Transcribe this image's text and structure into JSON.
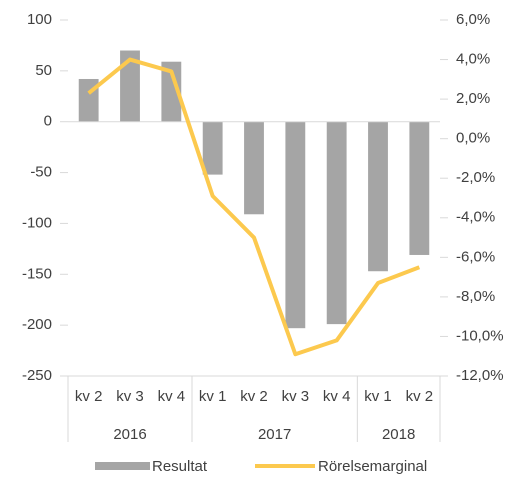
{
  "chart_data": {
    "type": "bar_line",
    "categories": [
      "kv 2",
      "kv 3",
      "kv 4",
      "kv 1",
      "kv 2",
      "kv 3",
      "kv 4",
      "kv 1",
      "kv 2"
    ],
    "groups": [
      {
        "label": "2016",
        "size": 3
      },
      {
        "label": "2017",
        "size": 4
      },
      {
        "label": "2018",
        "size": 2
      }
    ],
    "series": [
      {
        "name": "Resultat",
        "type": "bar",
        "color": "#a5a5a5",
        "values": [
          42,
          70,
          59,
          -52,
          -91,
          -203,
          -199,
          -147,
          -131
        ]
      },
      {
        "name": "Rörelsemarginal",
        "type": "line",
        "axis": "y2",
        "color": "#fcc94e",
        "values": [
          2.3,
          4.0,
          3.4,
          -2.9,
          -5.0,
          -10.9,
          -10.2,
          -7.3,
          -6.5
        ]
      }
    ],
    "ylim": [
      -250,
      100
    ],
    "yticks": [
      100,
      50,
      0,
      -50,
      -100,
      -150,
      -200,
      -250
    ],
    "y2lim": [
      -12,
      6
    ],
    "y2ticks": [
      {
        "value": 6,
        "label": "6,0%"
      },
      {
        "value": 4,
        "label": "4,0%"
      },
      {
        "value": 2,
        "label": "2,0%"
      },
      {
        "value": 0,
        "label": "0,0%"
      },
      {
        "value": -2,
        "label": "-2,0%"
      },
      {
        "value": -4,
        "label": "-4,0%"
      },
      {
        "value": -6,
        "label": "-6,0%"
      },
      {
        "value": -8,
        "label": "-8,0%"
      },
      {
        "value": -10,
        "label": "-10,0%"
      },
      {
        "value": -12,
        "label": "-12,0%"
      }
    ],
    "grid": false,
    "legend": "bottom"
  }
}
